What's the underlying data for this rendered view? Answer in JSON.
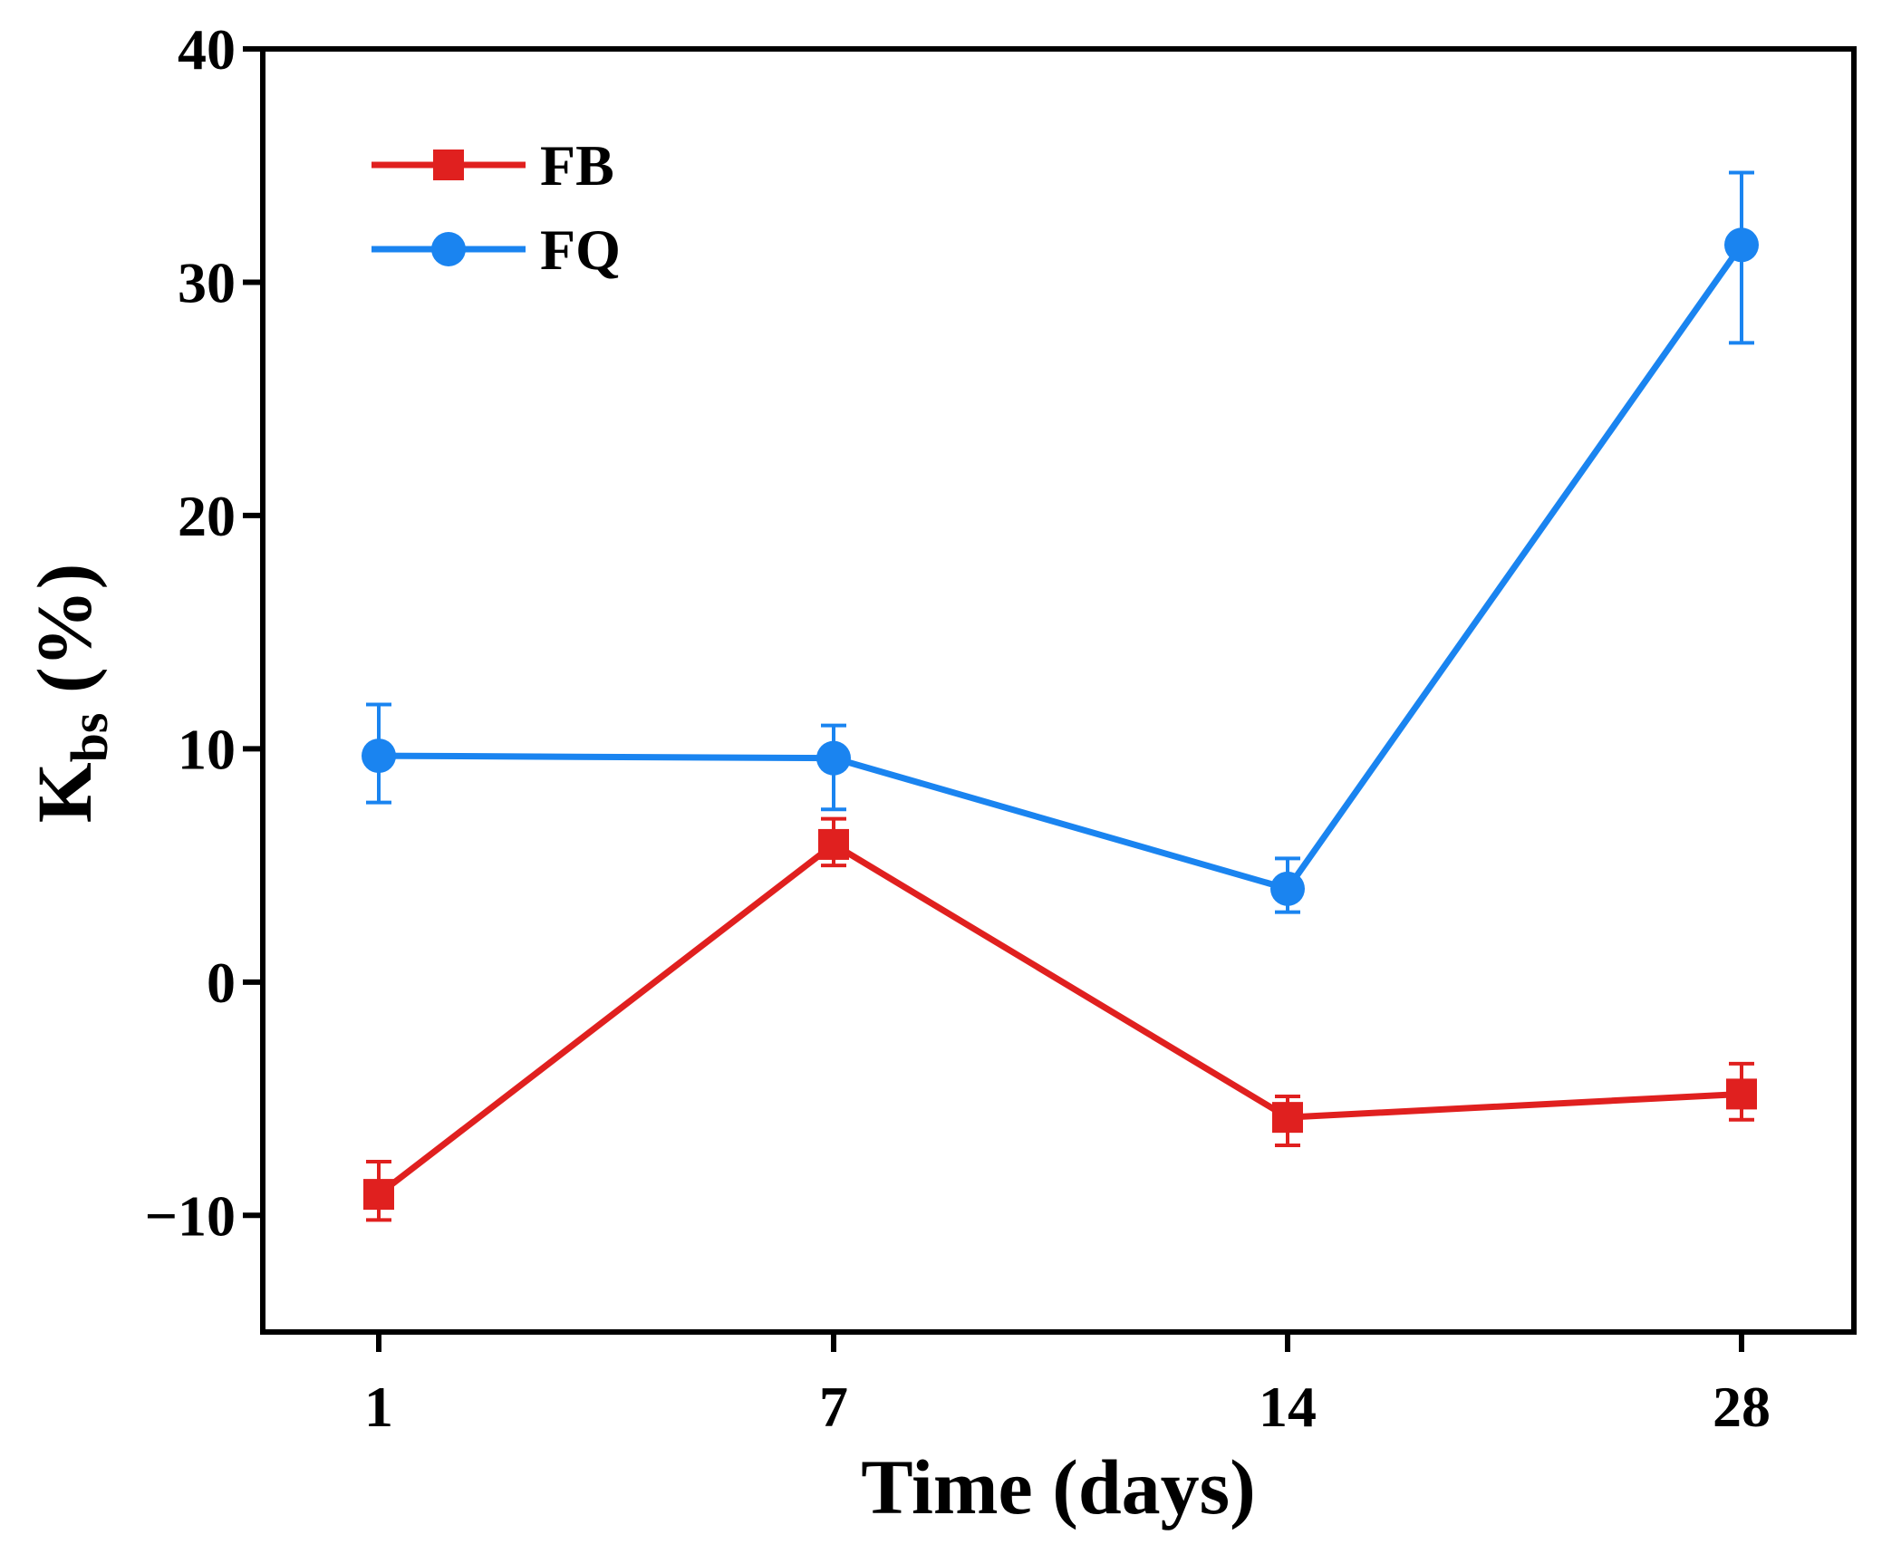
{
  "chart_data": {
    "type": "line",
    "xlabel": "Time (days)",
    "ylabel_main": "K",
    "ylabel_sub": "bs",
    "ylabel_suffix": " (%)",
    "categories": [
      "1",
      "7",
      "14",
      "28"
    ],
    "ylim": [
      -15,
      40
    ],
    "yticks": [
      -10,
      0,
      10,
      20,
      30,
      40
    ],
    "ytick_labels": [
      "−10",
      "0",
      "10",
      "20",
      "30",
      "40"
    ],
    "grid": false,
    "legend_position": "top-left",
    "series": [
      {
        "name": "FB",
        "color": "#e0201f",
        "marker": "square",
        "values": [
          -9.1,
          5.9,
          -5.8,
          -4.8
        ],
        "error_low": [
          -10.2,
          5.0,
          -7.0,
          -5.9
        ],
        "error_high": [
          -7.7,
          7.0,
          -4.9,
          -3.5
        ]
      },
      {
        "name": "FQ",
        "color": "#1a84f0",
        "marker": "circle",
        "values": [
          9.7,
          9.6,
          4.0,
          31.6
        ],
        "error_low": [
          7.7,
          7.4,
          3.0,
          27.4
        ],
        "error_high": [
          11.9,
          11.0,
          5.3,
          34.7
        ]
      }
    ]
  }
}
